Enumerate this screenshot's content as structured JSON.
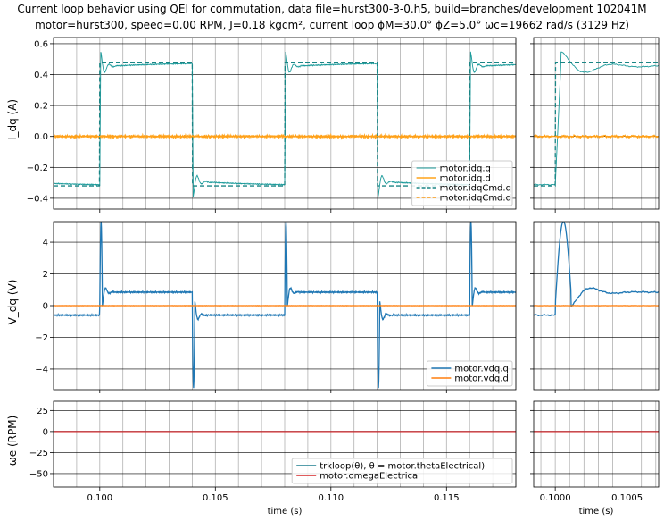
{
  "figure": {
    "title_line1": "Current loop behavior using QEI for commutation, data file=hurst300-3-0.h5, build=branches/development 102041M",
    "title_line2": "motor=hurst300, speed=0.00 RPM, J=0.18 kgcm², current loop ϕM=30.0° ϕZ=5.0° ωc=19662 rad/s (3129 Hz)"
  },
  "chart_data": [
    {
      "type": "line",
      "panel": "current-full",
      "ylabel": "I_dq (A)",
      "xlim": [
        0.098,
        0.118
      ],
      "ylim": [
        -0.47,
        0.64
      ],
      "yticks": [
        -0.4,
        -0.2,
        0.0,
        0.2,
        0.4,
        0.6
      ],
      "ytick_labels": [
        "−0.4",
        "−0.2",
        "0.0",
        "0.2",
        "0.4",
        "0.6"
      ],
      "grid": true,
      "legend": "lower-right",
      "series": [
        {
          "name": "motor.idq.q",
          "color": "#1a9a9a",
          "style": "solid",
          "kind": "q_response"
        },
        {
          "name": "motor.idq.d",
          "color": "#ffa31a",
          "style": "solid",
          "kind": "noise"
        },
        {
          "name": "motor.idqCmd.q",
          "color": "#1a8585",
          "style": "dashed",
          "kind": "q_command"
        },
        {
          "name": "motor.idqCmd.d",
          "color": "#ff9f1a",
          "style": "dashed",
          "kind": "zero"
        }
      ]
    },
    {
      "type": "line",
      "panel": "current-zoom",
      "xlim": [
        0.09985,
        0.10072
      ],
      "ylim": [
        -0.47,
        0.64
      ],
      "grid": true,
      "series": [
        {
          "name": "motor.idq.q",
          "color": "#1a9a9a",
          "style": "solid",
          "kind": "q_response"
        },
        {
          "name": "motor.idq.d",
          "color": "#ffa31a",
          "style": "solid",
          "kind": "noise"
        },
        {
          "name": "motor.idqCmd.q",
          "color": "#1a8585",
          "style": "dashed",
          "kind": "q_command"
        },
        {
          "name": "motor.idqCmd.d",
          "color": "#ff9f1a",
          "style": "dashed",
          "kind": "zero"
        }
      ]
    },
    {
      "type": "line",
      "panel": "voltage-full",
      "ylabel": "V_dq (V)",
      "xlim": [
        0.098,
        0.118
      ],
      "ylim": [
        -5.3,
        5.3
      ],
      "yticks": [
        -4,
        -2,
        0,
        2,
        4
      ],
      "ytick_labels": [
        "−4",
        "−2",
        "0",
        "2",
        "4"
      ],
      "grid": true,
      "legend": "lower-right",
      "series": [
        {
          "name": "motor.vdq.q",
          "color": "#1f77b4",
          "style": "solid",
          "kind": "v_q"
        },
        {
          "name": "motor.vdq.d",
          "color": "#ff7f0e",
          "style": "solid",
          "kind": "noise"
        }
      ]
    },
    {
      "type": "line",
      "panel": "voltage-zoom",
      "xlim": [
        0.09985,
        0.10072
      ],
      "ylim": [
        -5.3,
        5.3
      ],
      "grid": true,
      "series": [
        {
          "name": "motor.vdq.q",
          "color": "#1f77b4",
          "style": "solid",
          "kind": "v_q"
        },
        {
          "name": "motor.vdq.d",
          "color": "#ff7f0e",
          "style": "solid",
          "kind": "noise"
        }
      ]
    },
    {
      "type": "line",
      "panel": "speed-full",
      "ylabel": "ωe (RPM)",
      "xlabel": "time (s)",
      "xlim": [
        0.098,
        0.118
      ],
      "ylim": [
        -66,
        36
      ],
      "yticks": [
        -50,
        -25,
        0,
        25
      ],
      "ytick_labels": [
        "−50",
        "−25",
        "0",
        "25"
      ],
      "xticks": [
        0.1,
        0.105,
        0.11,
        0.115
      ],
      "xtick_labels": [
        "0.100",
        "0.105",
        "0.110",
        "0.115"
      ],
      "grid": true,
      "legend": "lower-right",
      "series": [
        {
          "name": "trkloop(θ), θ = motor.thetaElectrical)",
          "color": "#1f7f8f",
          "style": "solid",
          "kind": "zero"
        },
        {
          "name": "motor.omegaElectrical",
          "color": "#d62728",
          "style": "solid",
          "kind": "zero"
        }
      ]
    },
    {
      "type": "line",
      "panel": "speed-zoom",
      "xlabel": "time (s)",
      "xlim": [
        0.09985,
        0.10072
      ],
      "ylim": [
        -66,
        36
      ],
      "xticks": [
        0.1,
        0.1005
      ],
      "xtick_labels": [
        "0.1000",
        "0.1005"
      ],
      "grid": true,
      "series": [
        {
          "name": "trkloop(θ), θ = motor.thetaElectrical)",
          "color": "#1f7f8f",
          "style": "solid",
          "kind": "zero"
        },
        {
          "name": "motor.omegaElectrical",
          "color": "#d62728",
          "style": "solid",
          "kind": "zero"
        }
      ]
    }
  ]
}
